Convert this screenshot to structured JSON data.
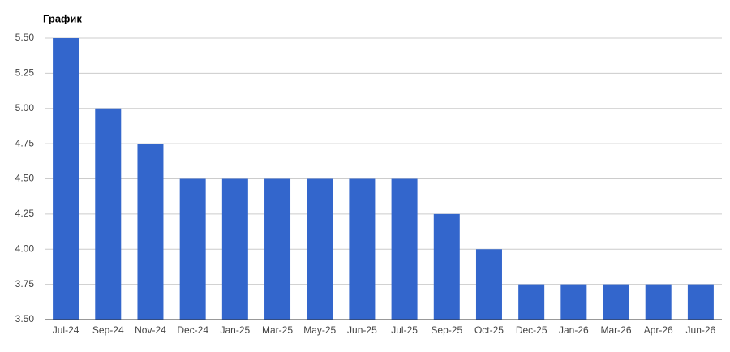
{
  "chart_data": {
    "type": "bar",
    "title": "График",
    "categories": [
      "Jul-24",
      "Sep-24",
      "Nov-24",
      "Dec-24",
      "Jan-25",
      "Mar-25",
      "May-25",
      "Jun-25",
      "Jul-25",
      "Sep-25",
      "Oct-25",
      "Dec-25",
      "Jan-26",
      "Mar-26",
      "Apr-26",
      "Jun-26"
    ],
    "values": [
      5.5,
      5,
      4.75,
      4.5,
      4.5,
      4.5,
      4.5,
      4.5,
      4.5,
      4.25,
      4,
      3.75,
      3.75,
      3.75,
      3.75,
      3.75
    ],
    "color": "#3366cc",
    "ylim": [
      3.5,
      5.5
    ],
    "yticks": [
      {
        "value": 3.5,
        "label": "3.50"
      },
      {
        "value": 3.75,
        "label": "3.75"
      },
      {
        "value": 4,
        "label": "4.00"
      },
      {
        "value": 4.25,
        "label": "4.25"
      },
      {
        "value": 4.5,
        "label": "4.50"
      },
      {
        "value": 4.75,
        "label": "4.75"
      },
      {
        "value": 5,
        "label": "5.00"
      },
      {
        "value": 5.25,
        "label": "5.25"
      },
      {
        "value": 5.5,
        "label": "5.50"
      }
    ],
    "grid": true
  }
}
